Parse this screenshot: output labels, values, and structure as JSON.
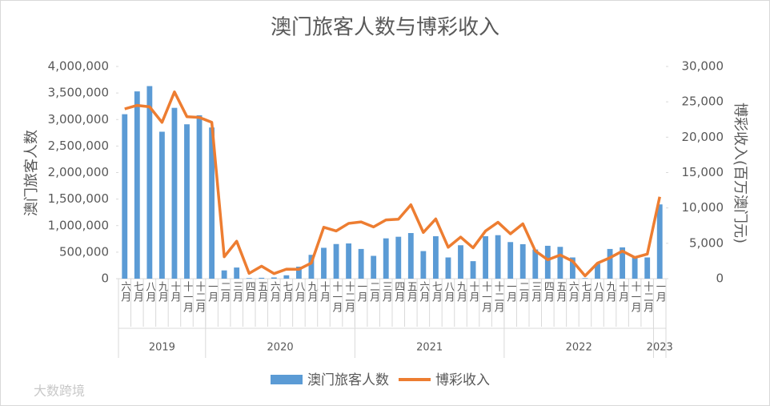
{
  "chart_data": {
    "type": "bar_line",
    "title": "澳门旅客人数与博彩收入",
    "y_label": "澳门旅客人数",
    "y2_label": "博彩收入(百万澳门元)",
    "groups": [
      {
        "label": "2019",
        "categories": [
          "六月",
          "七月",
          "八月",
          "九月",
          "十月",
          "十一月",
          "十二月"
        ]
      },
      {
        "label": "2020",
        "categories": [
          "一月",
          "二月",
          "三月",
          "四月",
          "五月",
          "六月",
          "七月",
          "八月",
          "九月",
          "十月",
          "十一月",
          "十二月"
        ]
      },
      {
        "label": "2021",
        "categories": [
          "一月",
          "二月",
          "三月",
          "四月",
          "五月",
          "六月",
          "七月",
          "八月",
          "九月",
          "十月",
          "十一月",
          "十二月"
        ]
      },
      {
        "label": "2022",
        "categories": [
          "一月",
          "二月",
          "三月",
          "四月",
          "五月",
          "六月",
          "七月",
          "八月",
          "九月",
          "十月",
          "十一月",
          "十二月"
        ]
      },
      {
        "label": "2023",
        "categories": [
          "一月"
        ]
      }
    ],
    "series": [
      {
        "name": "澳门旅客人数",
        "color": "#5b9bd5",
        "kind": "bar",
        "axis": "y",
        "values": [
          3100000,
          3530000,
          3630000,
          2770000,
          3220000,
          2910000,
          3080000,
          2850000,
          156000,
          210000,
          11000,
          17000,
          23000,
          64000,
          226000,
          449000,
          582000,
          653000,
          664000,
          560000,
          430000,
          760000,
          790000,
          860000,
          520000,
          800000,
          400000,
          630000,
          330000,
          800000,
          820000,
          690000,
          650000,
          550000,
          620000,
          600000,
          400000,
          10000,
          280000,
          560000,
          590000,
          400000,
          400000,
          1400000
        ]
      },
      {
        "name": "博彩收入",
        "color": "#ed7d31",
        "kind": "line",
        "axis": "y2",
        "values": [
          24000,
          24500,
          24300,
          22100,
          26400,
          22900,
          22800,
          22100,
          3100,
          5300,
          754,
          1764,
          716,
          1344,
          1330,
          2211,
          7270,
          6748,
          7818,
          8024,
          7312,
          8306,
          8401,
          10445,
          6535,
          8444,
          4441,
          5879,
          4365,
          6740,
          7975,
          6344,
          7757,
          3928,
          2677,
          3341,
          2477,
          398,
          2189,
          2962,
          3899,
          2999,
          3471,
          11580
        ]
      }
    ],
    "ylim": [
      0,
      4000000
    ],
    "yticks": [
      0,
      {
        "value": 500000,
        "label": "500,000"
      },
      {
        "value": 1000000,
        "label": "1,000,000"
      },
      {
        "value": 1500000,
        "label": "1,500,000"
      },
      {
        "value": 2000000,
        "label": "2,000,000"
      },
      {
        "value": 2500000,
        "label": "2,500,000"
      },
      {
        "value": 3000000,
        "label": "3,000,000"
      },
      {
        "value": 3500000,
        "label": "3,500,000"
      },
      {
        "value": 4000000,
        "label": "4,000,000"
      }
    ],
    "y2lim": [
      0,
      30000
    ],
    "y2ticks": [
      0,
      {
        "value": 5000,
        "label": "5,000"
      },
      {
        "value": 10000,
        "label": "10,000"
      },
      {
        "value": 15000,
        "label": "15,000"
      },
      {
        "value": 20000,
        "label": "20,000"
      },
      {
        "value": 25000,
        "label": "25,000"
      },
      {
        "value": 30000,
        "label": "30,000"
      }
    ],
    "legend": "bottom",
    "watermark": "大数跨境"
  }
}
